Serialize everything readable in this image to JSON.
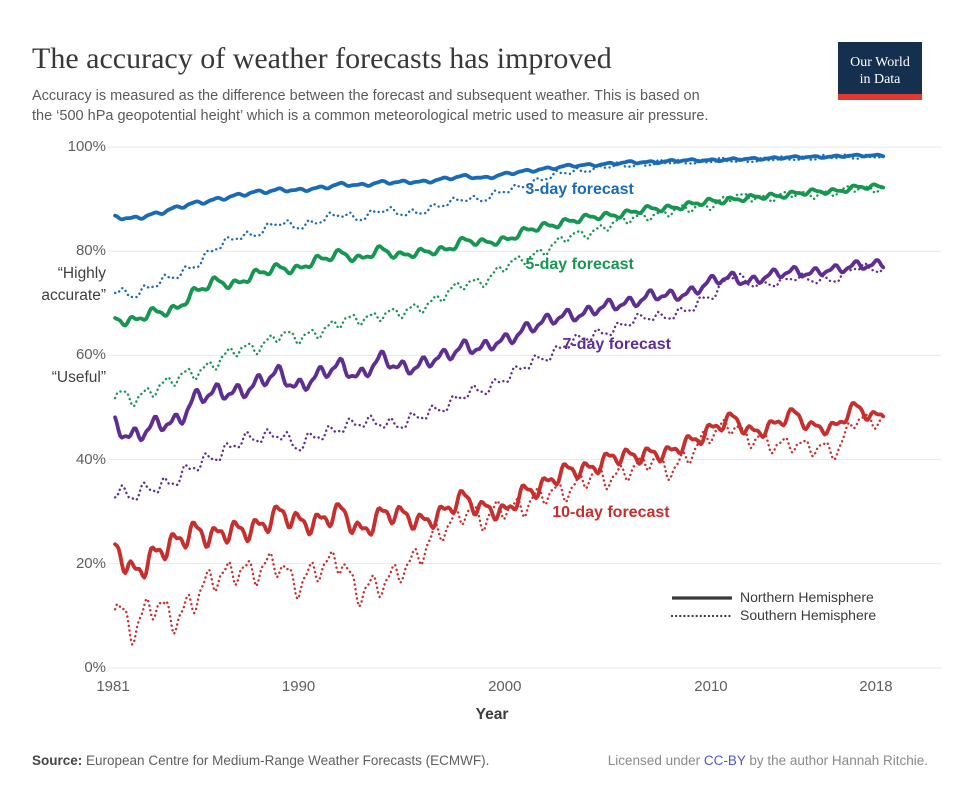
{
  "header": {
    "title": "The accuracy of weather forecasts has improved",
    "subtitle_lines": [
      "Accuracy is measured as the difference between the forecast and subsequent weather. This is based on",
      "the ‘500 hPa geopotential height’ which is a common meteorological metric used to measure air pressure."
    ],
    "logo": {
      "line1": "Our World",
      "line2": "in Data",
      "bg_color": "#15304f",
      "bar_color": "#e2382f",
      "text_color": "#ffffff"
    }
  },
  "chart_data": {
    "type": "line",
    "title": "The accuracy of weather forecasts has improved",
    "xlabel": "Year",
    "ylabel": "",
    "xlim": [
      1981,
      2018
    ],
    "ylim": [
      0,
      100
    ],
    "grid": "horizontal",
    "x_ticks": [
      {
        "value": 1981,
        "label": "1981"
      },
      {
        "value": 1990,
        "label": "1990"
      },
      {
        "value": 2000,
        "label": "2000"
      },
      {
        "value": 2010,
        "label": "2010"
      },
      {
        "value": 2018,
        "label": "2018"
      }
    ],
    "y_ticks": [
      {
        "value": 100,
        "label": "100%"
      },
      {
        "value": 80,
        "label": "80%"
      },
      {
        "value": 60,
        "label": "60%"
      },
      {
        "value": 40,
        "label": "40%"
      },
      {
        "value": 20,
        "label": "20%"
      },
      {
        "value": 0,
        "label": "0%"
      }
    ],
    "y_annotations": [
      {
        "value": 80,
        "lines": [
          "“Highly",
          "accurate”"
        ]
      },
      {
        "value": 60,
        "lines": [
          "“Useful”"
        ]
      }
    ],
    "years": [
      1981,
      1982,
      1983,
      1984,
      1985,
      1986,
      1987,
      1988,
      1989,
      1990,
      1991,
      1992,
      1993,
      1994,
      1995,
      1996,
      1997,
      1998,
      1999,
      2000,
      2001,
      2002,
      2003,
      2004,
      2005,
      2006,
      2007,
      2008,
      2009,
      2010,
      2011,
      2012,
      2013,
      2014,
      2015,
      2016,
      2017,
      2018
    ],
    "series": [
      {
        "id": "3day-nh",
        "forecast": "3-day forecast",
        "hemisphere": "Northern Hemisphere",
        "style": "solid",
        "color": "#1a6bb5",
        "wiggle_amplitude": 0.35,
        "values": [
          86.5,
          86.2,
          87.2,
          88.2,
          89.2,
          90.0,
          90.6,
          91.4,
          91.8,
          91.6,
          92.2,
          92.8,
          92.6,
          93.3,
          93.2,
          93.3,
          93.9,
          94.3,
          94.1,
          94.8,
          95.3,
          95.9,
          96.3,
          96.5,
          96.8,
          97.0,
          97.1,
          97.3,
          97.4,
          97.5,
          97.6,
          97.7,
          97.9,
          98.0,
          98.1,
          98.2,
          98.3,
          98.4
        ]
      },
      {
        "id": "3day-sh",
        "forecast": "3-day forecast",
        "hemisphere": "Southern Hemisphere",
        "style": "dotted",
        "color": "#1a6bb5",
        "wiggle_amplitude": 0.8,
        "values": [
          72.3,
          71.8,
          73.5,
          75.2,
          77.5,
          80.5,
          82.8,
          83.5,
          85.3,
          84.9,
          85.8,
          87.0,
          86.5,
          87.8,
          87.3,
          87.7,
          88.8,
          90.2,
          90.0,
          91.5,
          92.8,
          94.0,
          95.2,
          95.7,
          96.2,
          96.6,
          96.8,
          97.0,
          97.2,
          97.3,
          97.4,
          97.5,
          97.6,
          97.8,
          97.9,
          98.0,
          98.1,
          98.2
        ]
      },
      {
        "id": "5day-nh",
        "forecast": "5-day forecast",
        "hemisphere": "Northern Hemisphere",
        "style": "solid",
        "color": "#169651",
        "wiggle_amplitude": 0.9,
        "values": [
          67.2,
          66.5,
          68.2,
          69.0,
          72.0,
          74.3,
          73.8,
          75.5,
          77.0,
          76.5,
          78.3,
          79.8,
          78.3,
          80.3,
          79.3,
          79.6,
          80.3,
          82.0,
          81.5,
          82.3,
          83.8,
          84.8,
          85.8,
          86.3,
          86.9,
          87.4,
          88.0,
          88.4,
          88.9,
          89.5,
          90.0,
          90.2,
          90.6,
          91.1,
          91.3,
          91.6,
          92.2,
          92.3
        ]
      },
      {
        "id": "5day-sh",
        "forecast": "5-day forecast",
        "hemisphere": "Southern Hemisphere",
        "style": "dotted",
        "color": "#169651",
        "wiggle_amplitude": 1.3,
        "values": [
          52.4,
          51.5,
          53.8,
          55.2,
          56.8,
          58.8,
          60.8,
          61.8,
          63.8,
          63.2,
          64.8,
          66.2,
          67.0,
          68.0,
          68.0,
          69.5,
          71.5,
          73.5,
          74.5,
          77.0,
          78.5,
          80.5,
          82.5,
          83.5,
          85.0,
          86.0,
          87.0,
          87.5,
          88.2,
          89.0,
          90.3,
          90.4,
          90.4,
          90.9,
          91.0,
          91.3,
          92.0,
          92.1
        ]
      },
      {
        "id": "7day-nh",
        "forecast": "7-day forecast",
        "hemisphere": "Northern Hemisphere",
        "style": "solid",
        "color": "#5f2e91",
        "wiggle_amplitude": 1.6,
        "values": [
          46.5,
          44.8,
          46.2,
          47.2,
          52.0,
          52.5,
          53.2,
          54.6,
          56.3,
          54.3,
          56.0,
          58.0,
          56.3,
          59.0,
          57.8,
          58.3,
          59.5,
          62.0,
          61.3,
          62.8,
          65.3,
          66.3,
          67.8,
          68.3,
          69.3,
          70.3,
          71.3,
          71.3,
          72.3,
          74.0,
          75.0,
          74.3,
          75.3,
          76.3,
          75.8,
          76.3,
          77.5,
          77.3
        ]
      },
      {
        "id": "7day-sh",
        "forecast": "7-day forecast",
        "hemisphere": "Southern Hemisphere",
        "style": "dotted",
        "color": "#5f2e91",
        "wiggle_amplitude": 1.4,
        "values": [
          34.2,
          32.8,
          34.8,
          36.2,
          38.5,
          41.0,
          43.2,
          44.0,
          45.3,
          42.3,
          44.8,
          46.3,
          46.8,
          47.3,
          46.8,
          48.3,
          50.3,
          52.3,
          53.3,
          55.8,
          57.8,
          59.8,
          62.3,
          63.3,
          64.8,
          66.3,
          67.3,
          67.8,
          68.8,
          71.5,
          75.5,
          73.5,
          74.0,
          75.0,
          74.3,
          74.8,
          76.8,
          76.5
        ]
      },
      {
        "id": "10day-nh",
        "forecast": "10-day forecast",
        "hemisphere": "Northern Hemisphere",
        "style": "solid",
        "color": "#c52f2e",
        "wiggle_amplitude": 2.2,
        "values": [
          22.5,
          18.5,
          22.0,
          23.5,
          26.8,
          25.3,
          26.0,
          27.5,
          29.2,
          28.0,
          28.5,
          29.5,
          26.5,
          29.5,
          29.0,
          28.5,
          29.5,
          32.5,
          31.0,
          29.5,
          34.0,
          35.5,
          37.5,
          38.5,
          40.0,
          40.5,
          41.5,
          41.0,
          43.5,
          46.0,
          47.5,
          45.5,
          46.5,
          48.5,
          46.5,
          46.0,
          50.0,
          48.5
        ]
      },
      {
        "id": "10day-sh",
        "forecast": "10-day forecast",
        "hemisphere": "Southern Hemisphere",
        "style": "dotted",
        "color": "#c52f2e",
        "wiggle_amplitude": 2.8,
        "values": [
          13.0,
          8.0,
          11.5,
          10.0,
          13.5,
          17.0,
          19.5,
          18.0,
          20.0,
          16.5,
          18.5,
          21.0,
          14.5,
          15.5,
          19.5,
          22.0,
          26.5,
          30.5,
          28.0,
          31.0,
          31.5,
          33.0,
          34.5,
          36.5,
          36.0,
          38.5,
          39.5,
          38.0,
          41.5,
          44.5,
          47.0,
          44.0,
          42.5,
          43.5,
          42.0,
          41.5,
          48.0,
          47.0
        ]
      }
    ],
    "series_labels": [
      {
        "text": "3-day forecast",
        "color": "#1a6bb5",
        "x_year": 2001.0,
        "y_pct": 91.7
      },
      {
        "text": "5-day forecast",
        "color": "#169651",
        "x_year": 2001.0,
        "y_pct": 77.3
      },
      {
        "text": "7-day forecast",
        "color": "#5f2e91",
        "x_year": 2002.8,
        "y_pct": 62.0
      },
      {
        "text": "10-day forecast",
        "color": "#c52f2e",
        "x_year": 2002.3,
        "y_pct": 29.8
      }
    ],
    "legend_position": "bottom-right-inside"
  },
  "legend": {
    "color": "#3a3a3a",
    "items": [
      {
        "label": "Northern Hemisphere",
        "style": "solid"
      },
      {
        "label": "Southern Hemisphere",
        "style": "dotted"
      }
    ]
  },
  "footer": {
    "source_label": "Source:",
    "source_text": " European Centre for Medium-Range Weather Forecasts (ECMWF).",
    "license_prefix": "Licensed under ",
    "license_link": "CC-BY",
    "license_suffix": " by the author Hannah Ritchie."
  }
}
